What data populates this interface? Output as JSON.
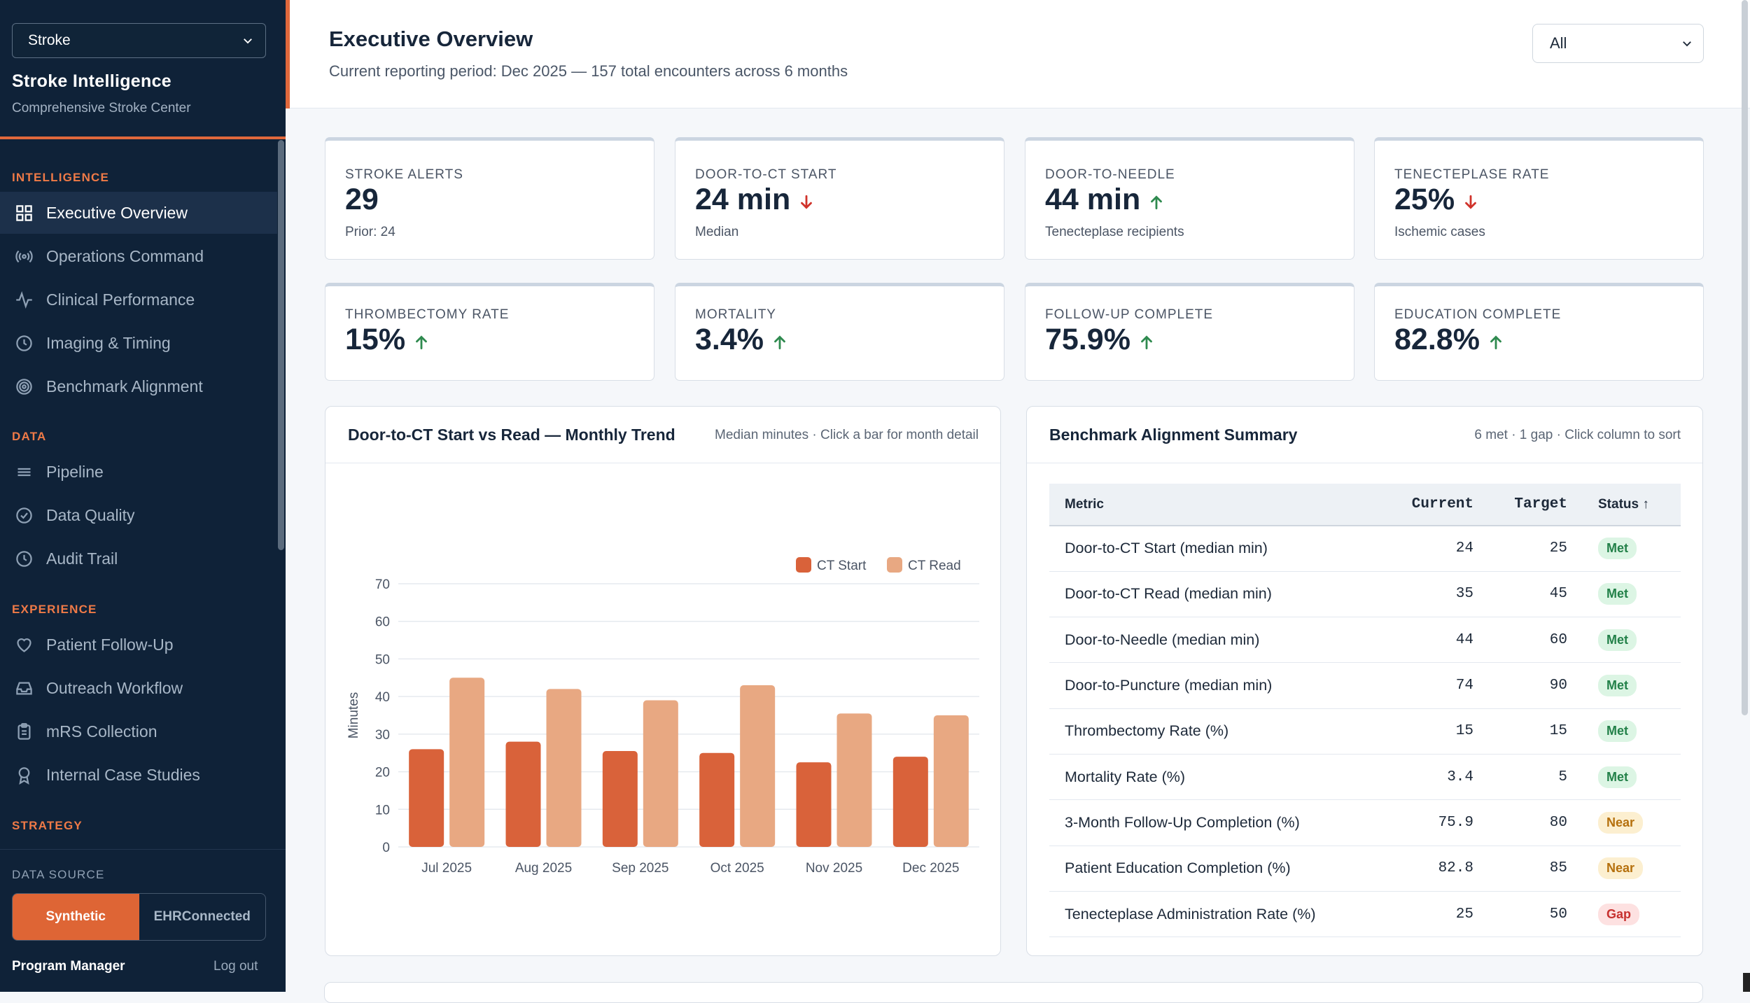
{
  "sidebar": {
    "program_select": "Stroke",
    "title": "Stroke Intelligence",
    "subtitle": "Comprehensive Stroke Center",
    "sections": {
      "intelligence": "INTELLIGENCE",
      "data": "DATA",
      "experience": "EXPERIENCE",
      "strategy": "STRATEGY"
    },
    "items": [
      {
        "label": "Executive Overview",
        "icon": "grid-icon"
      },
      {
        "label": "Operations Command",
        "icon": "broadcast-icon"
      },
      {
        "label": "Clinical Performance",
        "icon": "pulse-icon"
      },
      {
        "label": "Imaging & Timing",
        "icon": "clock-icon"
      },
      {
        "label": "Benchmark Alignment",
        "icon": "target-icon"
      },
      {
        "label": "Pipeline",
        "icon": "lines-icon"
      },
      {
        "label": "Data Quality",
        "icon": "check-circle-icon"
      },
      {
        "label": "Audit Trail",
        "icon": "clock-icon"
      },
      {
        "label": "Patient Follow-Up",
        "icon": "heart-icon"
      },
      {
        "label": "Outreach Workflow",
        "icon": "inbox-icon"
      },
      {
        "label": "mRS Collection",
        "icon": "clipboard-icon"
      },
      {
        "label": "Internal Case Studies",
        "icon": "award-icon"
      }
    ],
    "data_source_label": "DATA SOURCE",
    "data_source": {
      "synthetic": "Synthetic",
      "ehr_line1": "EHR",
      "ehr_line2": "Connected",
      "selected": "Synthetic"
    },
    "user": "Program Manager",
    "logout": "Log out"
  },
  "header": {
    "title": "Executive Overview",
    "subtitle": "Current reporting period: Dec 2025 — 157 total encounters across 6 months",
    "filter_value": "All"
  },
  "kpis": [
    {
      "label": "STROKE ALERTS",
      "value": "29",
      "note": "Prior: 24",
      "trend": "none"
    },
    {
      "label": "DOOR-TO-CT START",
      "value": "24 min",
      "note": "Median",
      "trend": "down"
    },
    {
      "label": "DOOR-TO-NEEDLE",
      "value": "44 min",
      "note": "Tenecteplase recipients",
      "trend": "up"
    },
    {
      "label": "TENECTEPLASE RATE",
      "value": "25%",
      "note": "Ischemic cases",
      "trend": "down"
    },
    {
      "label": "THROMBECTOMY RATE",
      "value": "15%",
      "note": "",
      "trend": "up"
    },
    {
      "label": "MORTALITY",
      "value": "3.4%",
      "note": "",
      "trend": "up"
    },
    {
      "label": "FOLLOW-UP COMPLETE",
      "value": "75.9%",
      "note": "",
      "trend": "up"
    },
    {
      "label": "EDUCATION COMPLETE",
      "value": "82.8%",
      "note": "",
      "trend": "up"
    }
  ],
  "colors": {
    "up": "#2f8a4f",
    "down": "#d0332b",
    "ct_start": "#d9623a",
    "ct_read": "#e8a882",
    "accent": "#e0683c"
  },
  "chart_panel": {
    "title": "Door-to-CT Start vs Read — Monthly Trend",
    "meta": "Median minutes · Click a bar for month detail"
  },
  "chart_data": {
    "type": "bar",
    "categories": [
      "Jul 2025",
      "Aug 2025",
      "Sep 2025",
      "Oct 2025",
      "Nov 2025",
      "Dec 2025"
    ],
    "series": [
      {
        "name": "CT Start",
        "values": [
          26,
          28,
          25.5,
          25,
          22.5,
          24
        ]
      },
      {
        "name": "CT Read",
        "values": [
          45,
          42,
          39,
          43,
          35.5,
          35
        ]
      }
    ],
    "ylabel": "Minutes",
    "ylim": [
      0,
      70
    ],
    "yticks": [
      0,
      10,
      20,
      30,
      40,
      50,
      60,
      70
    ],
    "grid": true,
    "legend": "top-right"
  },
  "benchmark": {
    "title": "Benchmark Alignment Summary",
    "meta": "6 met · 1 gap · Click column to sort",
    "headers": {
      "metric": "Metric",
      "current": "Current",
      "target": "Target",
      "status": "Status"
    },
    "rows": [
      {
        "metric": "Door-to-CT Start (median min)",
        "current": "24",
        "target": "25",
        "status": "Met"
      },
      {
        "metric": "Door-to-CT Read (median min)",
        "current": "35",
        "target": "45",
        "status": "Met"
      },
      {
        "metric": "Door-to-Needle (median min)",
        "current": "44",
        "target": "60",
        "status": "Met"
      },
      {
        "metric": "Door-to-Puncture (median min)",
        "current": "74",
        "target": "90",
        "status": "Met"
      },
      {
        "metric": "Thrombectomy Rate (%)",
        "current": "15",
        "target": "15",
        "status": "Met"
      },
      {
        "metric": "Mortality Rate (%)",
        "current": "3.4",
        "target": "5",
        "status": "Met"
      },
      {
        "metric": "3-Month Follow-Up Completion (%)",
        "current": "75.9",
        "target": "80",
        "status": "Near"
      },
      {
        "metric": "Patient Education Completion (%)",
        "current": "82.8",
        "target": "85",
        "status": "Near"
      },
      {
        "metric": "Tenecteplase Administration Rate (%)",
        "current": "25",
        "target": "50",
        "status": "Gap"
      }
    ]
  }
}
